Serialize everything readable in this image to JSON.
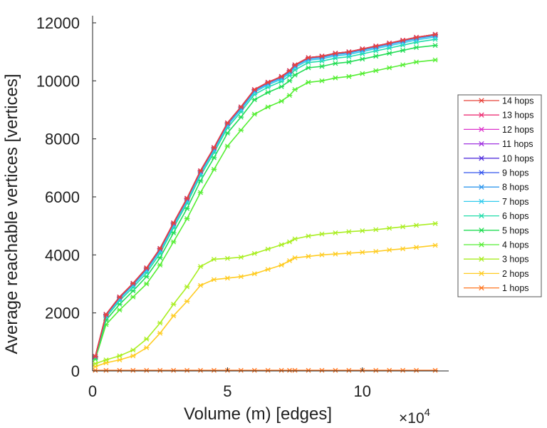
{
  "chart_data": {
    "type": "line",
    "title": "",
    "xlabel": "Volume (m) [edges]",
    "ylabel": "Average reachable vertices [vertices]",
    "x_multiplier": {
      "base": "×10",
      "exponent": "4"
    },
    "xlim": [
      0,
      13.2
    ],
    "ylim": [
      0,
      12000
    ],
    "x_ticks": [
      {
        "value": 0,
        "label": "0"
      },
      {
        "value": 5,
        "label": "5"
      },
      {
        "value": 10,
        "label": "10"
      }
    ],
    "y_ticks": [
      {
        "value": 0,
        "label": "0"
      },
      {
        "value": 2000,
        "label": "2000"
      },
      {
        "value": 4000,
        "label": "4000"
      },
      {
        "value": 6000,
        "label": "6000"
      },
      {
        "value": 8000,
        "label": "8000"
      },
      {
        "value": 10000,
        "label": "10000"
      },
      {
        "value": 12000,
        "label": "12000"
      }
    ],
    "grid": false,
    "legend_position": "right",
    "x": [
      0.1,
      0.5,
      1.0,
      1.5,
      2.0,
      2.5,
      3.0,
      3.5,
      4.0,
      4.5,
      5.0,
      5.5,
      6.0,
      6.5,
      7.0,
      7.3,
      7.5,
      8.0,
      8.5,
      9.0,
      9.5,
      10.0,
      10.5,
      11.0,
      11.5,
      12.0,
      12.7
    ],
    "series": [
      {
        "name": "14 hops",
        "color": "#e8433a",
        "values": [
          500,
          1950,
          2550,
          3020,
          3550,
          4220,
          5100,
          5950,
          6900,
          7700,
          8550,
          9100,
          9700,
          9950,
          10150,
          10350,
          10550,
          10800,
          10850,
          10950,
          11000,
          11100,
          11200,
          11300,
          11400,
          11500,
          11600
        ]
      },
      {
        "name": "13 hops",
        "color": "#ee3377",
        "values": [
          500,
          1950,
          2550,
          3020,
          3550,
          4220,
          5100,
          5950,
          6900,
          7700,
          8550,
          9100,
          9700,
          9950,
          10150,
          10350,
          10550,
          10800,
          10850,
          10950,
          11000,
          11100,
          11200,
          11300,
          11400,
          11500,
          11600
        ]
      },
      {
        "name": "12 hops",
        "color": "#dd33cc",
        "values": [
          500,
          1950,
          2550,
          3020,
          3550,
          4220,
          5100,
          5950,
          6900,
          7700,
          8550,
          9100,
          9700,
          9950,
          10150,
          10350,
          10550,
          10800,
          10850,
          10950,
          11000,
          11100,
          11200,
          11300,
          11400,
          11500,
          11600
        ]
      },
      {
        "name": "11 hops",
        "color": "#a033e0",
        "values": [
          500,
          1950,
          2550,
          3020,
          3550,
          4220,
          5100,
          5950,
          6900,
          7700,
          8550,
          9100,
          9700,
          9950,
          10150,
          10350,
          10550,
          10800,
          10850,
          10950,
          11000,
          11100,
          11200,
          11300,
          11400,
          11500,
          11600
        ]
      },
      {
        "name": "10 hops",
        "color": "#5533dd",
        "values": [
          500,
          1950,
          2550,
          3020,
          3550,
          4220,
          5100,
          5950,
          6900,
          7700,
          8550,
          9100,
          9700,
          9950,
          10150,
          10350,
          10550,
          10800,
          10850,
          10950,
          11000,
          11100,
          11200,
          11300,
          11400,
          11500,
          11600
        ]
      },
      {
        "name": "9 hops",
        "color": "#3355ee",
        "values": [
          500,
          1950,
          2550,
          3020,
          3550,
          4220,
          5100,
          5950,
          6900,
          7700,
          8550,
          9100,
          9700,
          9950,
          10150,
          10350,
          10550,
          10800,
          10850,
          10950,
          11000,
          11100,
          11200,
          11300,
          11400,
          11500,
          11600
        ]
      },
      {
        "name": "8 hops",
        "color": "#3399ee",
        "values": [
          490,
          1930,
          2520,
          2990,
          3510,
          4180,
          5060,
          5910,
          6860,
          7660,
          8510,
          9060,
          9660,
          9910,
          10110,
          10310,
          10510,
          10760,
          10810,
          10910,
          10960,
          11060,
          11160,
          11260,
          11360,
          11460,
          11560
        ]
      },
      {
        "name": "7 hops",
        "color": "#33ccee",
        "values": [
          480,
          1900,
          2480,
          2950,
          3460,
          4130,
          5010,
          5860,
          6810,
          7610,
          8460,
          9010,
          9610,
          9860,
          10060,
          10260,
          10460,
          10710,
          10760,
          10860,
          10910,
          11010,
          11110,
          11210,
          11310,
          11410,
          11510
        ]
      },
      {
        "name": "6 hops",
        "color": "#22ddaa",
        "values": [
          470,
          1850,
          2420,
          2880,
          3380,
          4050,
          4930,
          5780,
          6730,
          7530,
          8380,
          8930,
          9530,
          9780,
          9980,
          10180,
          10380,
          10630,
          10680,
          10780,
          10830,
          10930,
          11030,
          11130,
          11230,
          11330,
          11430
        ]
      },
      {
        "name": "5 hops",
        "color": "#22dd55",
        "values": [
          450,
          1750,
          2300,
          2760,
          3250,
          3900,
          4760,
          5600,
          6550,
          7350,
          8200,
          8750,
          9350,
          9600,
          9800,
          10000,
          10200,
          10450,
          10500,
          10600,
          10650,
          10750,
          10850,
          10950,
          11050,
          11150,
          11220
        ]
      },
      {
        "name": "4 hops",
        "color": "#55ee33",
        "values": [
          400,
          1600,
          2100,
          2550,
          3000,
          3650,
          4450,
          5250,
          6150,
          6950,
          7750,
          8300,
          8850,
          9100,
          9300,
          9500,
          9700,
          9950,
          10000,
          10100,
          10150,
          10250,
          10350,
          10450,
          10550,
          10650,
          10720
        ]
      },
      {
        "name": "3 hops",
        "color": "#aaee22",
        "values": [
          250,
          380,
          520,
          720,
          1100,
          1650,
          2300,
          2900,
          3600,
          3850,
          3880,
          3920,
          4050,
          4200,
          4350,
          4450,
          4550,
          4650,
          4720,
          4760,
          4800,
          4830,
          4870,
          4920,
          4970,
          5020,
          5080
        ]
      },
      {
        "name": "2 hops",
        "color": "#ffcc22",
        "values": [
          150,
          280,
          380,
          520,
          800,
          1300,
          1900,
          2400,
          2950,
          3150,
          3200,
          3250,
          3350,
          3500,
          3650,
          3800,
          3900,
          3950,
          4000,
          4030,
          4060,
          4090,
          4120,
          4170,
          4210,
          4260,
          4330
        ]
      },
      {
        "name": "1 hops",
        "color": "#ff7722",
        "values": [
          20,
          20,
          20,
          20,
          20,
          20,
          20,
          20,
          20,
          20,
          20,
          20,
          20,
          20,
          20,
          20,
          20,
          20,
          20,
          20,
          20,
          20,
          20,
          20,
          20,
          20,
          20
        ]
      }
    ]
  }
}
